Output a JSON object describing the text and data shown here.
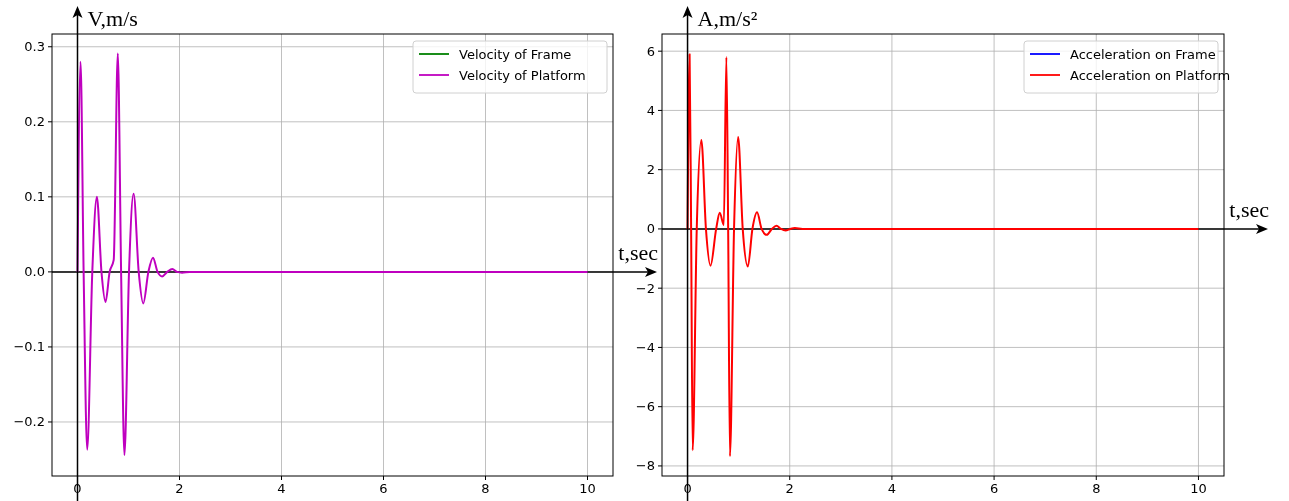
{
  "chart_data": [
    {
      "type": "line",
      "xlabel": "t,sec",
      "ylabel": "V,m/s",
      "xlim": [
        -0.5,
        10.5
      ],
      "ylim": [
        -0.272,
        0.317
      ],
      "xticks": [
        0,
        2,
        4,
        6,
        8,
        10
      ],
      "yticks": [
        {
          "value": -0.2,
          "label": "−0.2"
        },
        {
          "value": -0.1,
          "label": "−0.1"
        },
        {
          "value": 0,
          "label": "0.0"
        },
        0.1,
        0.2,
        0.3
      ],
      "grid": true,
      "legend": "top right",
      "line_style": "solid",
      "marker": "none",
      "x": [
        0,
        0.06,
        0.12,
        0.19,
        0.29,
        0.38,
        0.47,
        0.55,
        0.63,
        0.71,
        0.79,
        0.855,
        0.92,
        1.01,
        1.1,
        1.2,
        1.29,
        1.39,
        1.48,
        1.57,
        1.66,
        1.76,
        1.86,
        1.95,
        2.05,
        2.2,
        10
      ],
      "series": [
        {
          "name": "Velocity of Frame",
          "color": "#008000",
          "values": [
            null,
            null,
            null,
            null,
            null,
            null,
            null,
            null,
            null,
            null,
            null,
            null,
            null,
            null,
            null,
            null,
            null,
            null,
            null,
            null,
            null,
            null,
            null,
            null,
            null,
            null,
            null
          ]
        },
        {
          "name": "Velocity of Platform",
          "color": "#bf00bf",
          "values": [
            0,
            0.28,
            0,
            -0.237,
            0,
            0.1,
            0,
            -0.04,
            0,
            0.016,
            0.291,
            0,
            -0.244,
            0,
            0.104,
            0,
            -0.042,
            0,
            0.019,
            0,
            -0.006,
            0,
            0.004,
            0,
            -0.001,
            0,
            0
          ]
        }
      ]
    },
    {
      "type": "line",
      "xlabel": "t,sec",
      "ylabel": "A,m/s²",
      "xlim": [
        -0.5,
        10.5
      ],
      "ylim": [
        -8.34,
        6.58
      ],
      "xticks": [
        0,
        2,
        4,
        6,
        8,
        10
      ],
      "yticks": [
        {
          "value": -8,
          "label": "−8"
        },
        {
          "value": -6,
          "label": "−6"
        },
        {
          "value": -4,
          "label": "−4"
        },
        {
          "value": -2,
          "label": "−2"
        },
        0,
        2,
        4,
        6
      ],
      "grid": true,
      "legend": "top right",
      "line_style": "solid",
      "marker": "none",
      "x": [
        0,
        0.04,
        0.07,
        0.1,
        0.18,
        0.27,
        0.36,
        0.45,
        0.56,
        0.63,
        0.71,
        0.76,
        0.795,
        0.83,
        0.91,
        0.99,
        1.08,
        1.18,
        1.27,
        1.36,
        1.45,
        1.55,
        1.65,
        1.74,
        1.83,
        1.92,
        2.01,
        2.1,
        2.25,
        10
      ],
      "series": [
        {
          "name": "Acceleration on Frame",
          "color": "#0000ff",
          "values": [
            null,
            null,
            null,
            null,
            null,
            null,
            null,
            null,
            null,
            null,
            null,
            null,
            null,
            null,
            null,
            null,
            null,
            null,
            null,
            null,
            null,
            null,
            null,
            null,
            null,
            null,
            null,
            null,
            null,
            null
          ]
        },
        {
          "name": "Acceleration on Platform",
          "color": "#ff0000",
          "values": [
            0,
            5.9,
            0,
            -7.47,
            0,
            3.0,
            0,
            -1.24,
            0,
            0.55,
            0.13,
            5.8,
            0,
            -7.67,
            0,
            3.1,
            0,
            -1.27,
            0,
            0.56,
            0,
            -0.2,
            0,
            0.11,
            0,
            -0.05,
            0,
            0.03,
            0,
            0
          ]
        }
      ]
    }
  ]
}
